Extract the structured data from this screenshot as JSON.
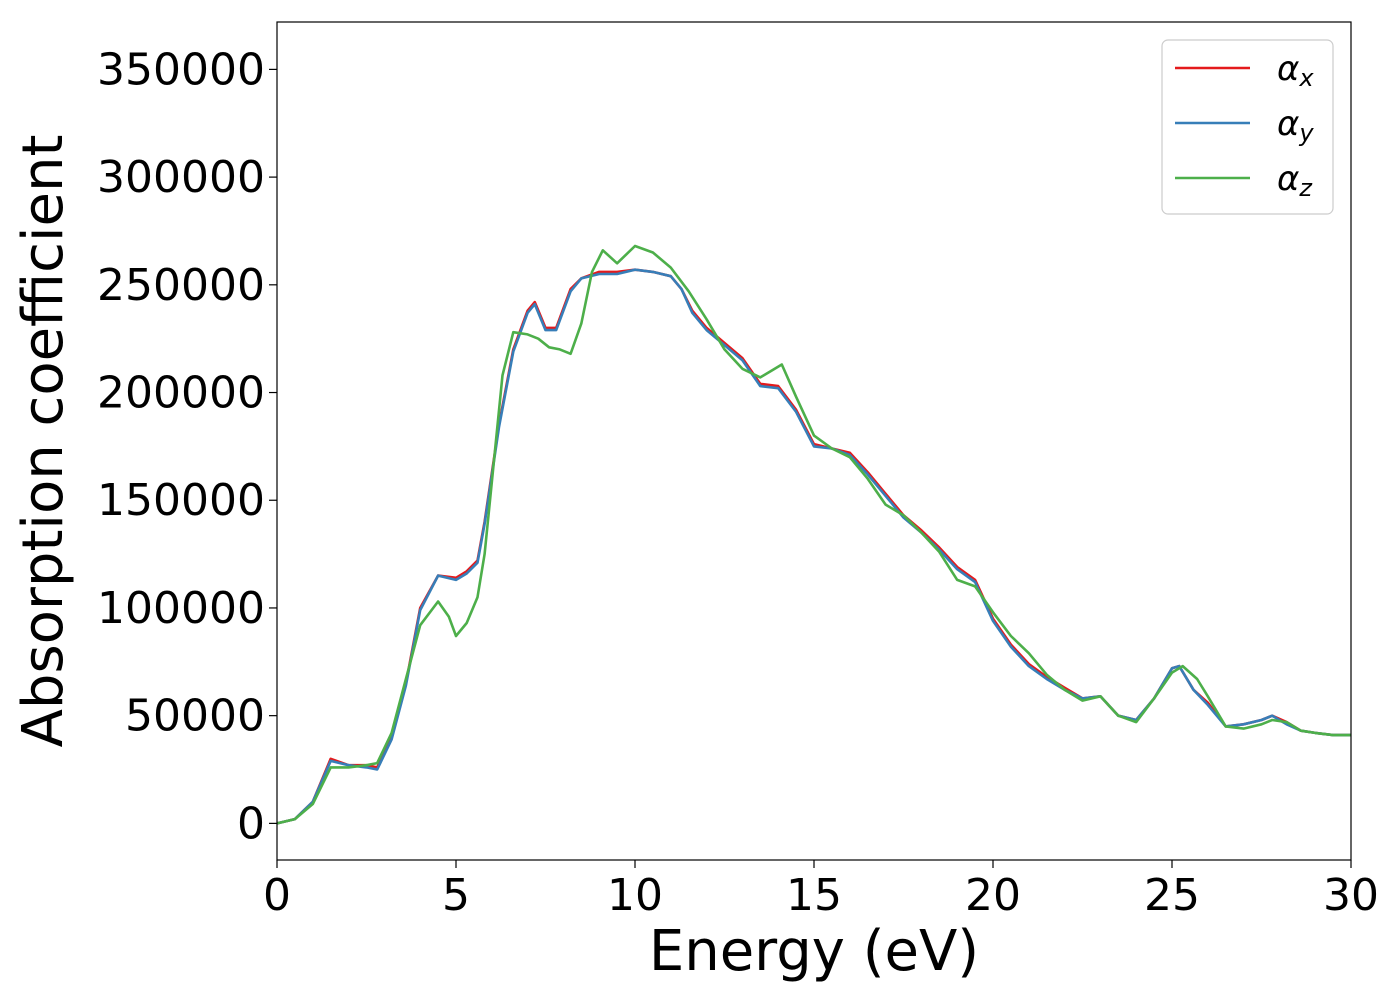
{
  "chart_data": {
    "type": "line",
    "title": "",
    "xlabel": "Energy (eV)",
    "ylabel": "Absorption coefficient",
    "xlim": [
      0,
      30
    ],
    "ylim": [
      -17000,
      372000
    ],
    "grid": false,
    "legend_position": "top-right",
    "x_ticks": [
      "0",
      "5",
      "10",
      "15",
      "20",
      "25",
      "30"
    ],
    "y_ticks": [
      "0",
      "50000",
      "100000",
      "150000",
      "200000",
      "250000",
      "300000",
      "350000"
    ],
    "series": [
      {
        "name": "α",
        "sub": "x",
        "color": "#e41a1c",
        "x": [
          0,
          0.5,
          1,
          1.5,
          2,
          2.5,
          2.8,
          3.2,
          3.6,
          4,
          4.5,
          5,
          5.3,
          5.6,
          5.8,
          6.2,
          6.6,
          7,
          7.2,
          7.5,
          7.8,
          8.2,
          8.5,
          9,
          9.5,
          10,
          10.5,
          11,
          11.3,
          11.6,
          12,
          12.5,
          13,
          13.5,
          14,
          14.5,
          15,
          15.5,
          16,
          16.5,
          17,
          17.5,
          18,
          18.5,
          19,
          19.5,
          20,
          20.5,
          21,
          21.5,
          22,
          22.5,
          23,
          23.5,
          24,
          24.5,
          25,
          25.2,
          25.6,
          26,
          26.5,
          27,
          27.5,
          27.8,
          28.2,
          28.6,
          29,
          29.5,
          30
        ],
        "y": [
          0,
          2000,
          10000,
          30000,
          27000,
          27000,
          26000,
          40000,
          65000,
          100000,
          115000,
          114000,
          117000,
          122000,
          140000,
          185000,
          220000,
          238000,
          242000,
          230000,
          230000,
          248000,
          253000,
          256000,
          256000,
          257000,
          256000,
          254000,
          248000,
          238000,
          230000,
          223000,
          216000,
          204000,
          203000,
          192000,
          176000,
          174000,
          172000,
          163000,
          153000,
          143000,
          136000,
          128000,
          119000,
          113000,
          95000,
          83000,
          74000,
          68000,
          63000,
          58000,
          59000,
          50000,
          48000,
          58000,
          72000,
          73000,
          62000,
          56000,
          45000,
          46000,
          48000,
          50000,
          47000,
          43000,
          42000,
          41000,
          41000
        ]
      },
      {
        "name": "α",
        "sub": "y",
        "color": "#377eb8",
        "x": [
          0,
          0.5,
          1,
          1.5,
          2,
          2.5,
          2.8,
          3.2,
          3.6,
          4,
          4.5,
          5,
          5.3,
          5.6,
          5.8,
          6.2,
          6.6,
          7,
          7.2,
          7.5,
          7.8,
          8.2,
          8.5,
          9,
          9.5,
          10,
          10.5,
          11,
          11.3,
          11.6,
          12,
          12.5,
          13,
          13.5,
          14,
          14.5,
          15,
          15.5,
          16,
          16.5,
          17,
          17.5,
          18,
          18.5,
          19,
          19.5,
          20,
          20.5,
          21,
          21.5,
          22,
          22.5,
          23,
          23.5,
          24,
          24.5,
          25,
          25.2,
          25.6,
          26,
          26.5,
          27,
          27.5,
          27.8,
          28.2,
          28.6,
          29,
          29.5,
          30
        ],
        "y": [
          0,
          2000,
          10000,
          29000,
          27000,
          26000,
          25000,
          39000,
          64000,
          99000,
          115000,
          113000,
          116000,
          121000,
          139000,
          184000,
          219000,
          237000,
          241000,
          229000,
          229000,
          247000,
          253000,
          255000,
          255000,
          257000,
          256000,
          254000,
          248000,
          237000,
          229000,
          222000,
          215000,
          203000,
          202000,
          191000,
          175000,
          174000,
          171000,
          162000,
          152000,
          142000,
          135000,
          127000,
          118000,
          112000,
          94000,
          82000,
          73000,
          67000,
          62000,
          58000,
          59000,
          50000,
          48000,
          58000,
          72000,
          73000,
          62000,
          55000,
          45000,
          46000,
          48000,
          50000,
          46000,
          43000,
          42000,
          41000,
          41000
        ]
      },
      {
        "name": "α",
        "sub": "z",
        "color": "#4daf4a",
        "x": [
          0,
          0.5,
          1,
          1.5,
          2,
          2.5,
          2.8,
          3.2,
          3.6,
          4,
          4.5,
          4.8,
          5,
          5.3,
          5.6,
          5.8,
          6.1,
          6.3,
          6.6,
          7,
          7.3,
          7.6,
          7.9,
          8.2,
          8.5,
          8.8,
          9.1,
          9.5,
          10,
          10.5,
          11,
          11.5,
          12,
          12.5,
          13,
          13.5,
          13.8,
          14.1,
          14.5,
          15,
          15.5,
          16,
          16.5,
          17,
          17.5,
          18,
          18.5,
          19,
          19.5,
          20,
          20.5,
          21,
          21.5,
          22,
          22.5,
          23,
          23.5,
          24,
          24.5,
          25,
          25.3,
          25.7,
          26,
          26.5,
          27,
          27.5,
          27.8,
          28.2,
          28.6,
          29,
          29.5,
          30
        ],
        "y": [
          0,
          2000,
          9000,
          26000,
          26000,
          27000,
          28000,
          42000,
          67000,
          92000,
          103000,
          96000,
          87000,
          93000,
          105000,
          125000,
          175000,
          208000,
          228000,
          227000,
          225000,
          221000,
          220000,
          218000,
          232000,
          256000,
          266000,
          260000,
          268000,
          265000,
          258000,
          247000,
          234000,
          220000,
          211000,
          207000,
          210000,
          213000,
          198000,
          180000,
          174000,
          170000,
          160000,
          148000,
          143000,
          135000,
          126000,
          113000,
          110000,
          98000,
          87000,
          79000,
          69000,
          62000,
          57000,
          59000,
          50000,
          47000,
          58000,
          70000,
          73000,
          67000,
          59000,
          45000,
          44000,
          46000,
          48000,
          47000,
          43000,
          42000,
          41000,
          41000
        ]
      }
    ]
  }
}
